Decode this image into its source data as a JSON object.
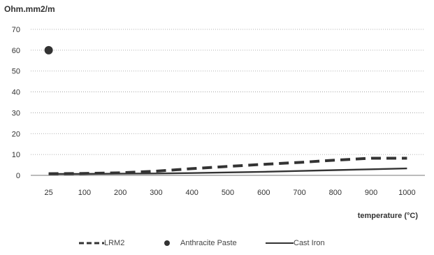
{
  "chart_data": {
    "type": "line",
    "ylabel": "Ohm.mm2/m",
    "xlabel": "temperature (°C)",
    "categories": [
      "25",
      "100",
      "200",
      "300",
      "400",
      "500",
      "600",
      "700",
      "800",
      "900",
      "1000"
    ],
    "ylim": [
      0,
      70
    ],
    "yticks": [
      0,
      10,
      20,
      30,
      40,
      50,
      60,
      70
    ],
    "grid": true,
    "legend_position": "bottom",
    "series": [
      {
        "name": "LRM2",
        "style": "dashed",
        "color": "#333333",
        "values": [
          0.8,
          0.9,
          1.2,
          2.0,
          3.2,
          4.3,
          5.3,
          6.2,
          7.3,
          8.2,
          8.2
        ]
      },
      {
        "name": "Anthracite Paste",
        "style": "marker",
        "color": "#333333",
        "values": [
          60,
          null,
          null,
          null,
          null,
          null,
          null,
          null,
          null,
          null,
          null
        ]
      },
      {
        "name": "Cast Iron",
        "style": "solid",
        "color": "#333333",
        "values": [
          0.7,
          0.7,
          0.8,
          0.9,
          1.1,
          1.4,
          1.7,
          2.1,
          2.5,
          2.9,
          3.3
        ]
      }
    ]
  }
}
